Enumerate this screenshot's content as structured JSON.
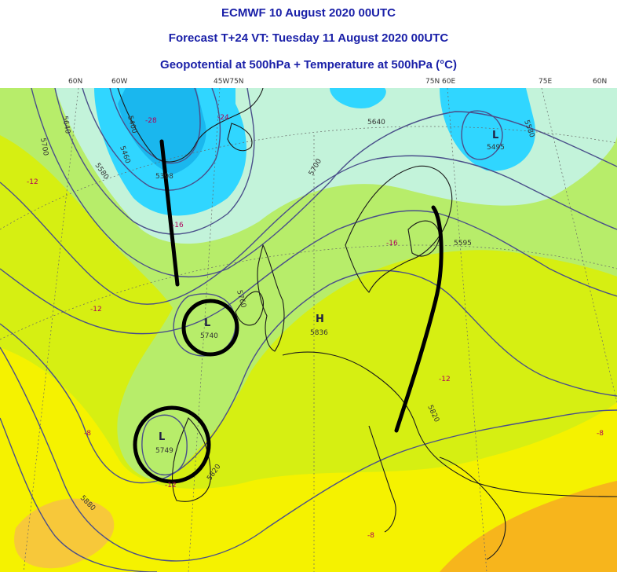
{
  "header": {
    "line1": "ECMWF 10 August 2020 00UTC",
    "line2": "Forecast T+24 VT: Tuesday 11 August 2020 00UTC",
    "line3": "Geopotential at 500hPa + Temperature at 500hPa (°C)"
  },
  "longitude_labels": [
    "60N",
    "60W",
    "45W75N",
    "75N 60E",
    "75E",
    "60N"
  ],
  "colors": {
    "title": "#1a20a8",
    "warm_orange": "#f7b51c",
    "yellow": "#f5f200",
    "yellow_green": "#d6ef12",
    "light_green": "#b7ed6a",
    "pale_cyan": "#c3f3da",
    "cyan": "#30d6ff",
    "deep_cyan": "#1ab7ee",
    "contour": "#4a4f8a",
    "annotation": "#000000"
  },
  "centers": [
    {
      "type": "L",
      "value": "5740"
    },
    {
      "type": "L",
      "value": "5749"
    },
    {
      "type": "H",
      "value": "5836"
    },
    {
      "type": "L",
      "value": "5495"
    }
  ],
  "contour_labels": [
    "5700",
    "5640",
    "5400",
    "5460",
    "5580",
    "5398",
    "5640",
    "5700",
    "5580",
    "5595",
    "5760",
    "5820",
    "5820",
    "5880"
  ],
  "temperature_labels": [
    "-28",
    "-24",
    "-12",
    "-16",
    "-12",
    "-16",
    "-12",
    "-8",
    "-12",
    "-8",
    "-8"
  ]
}
